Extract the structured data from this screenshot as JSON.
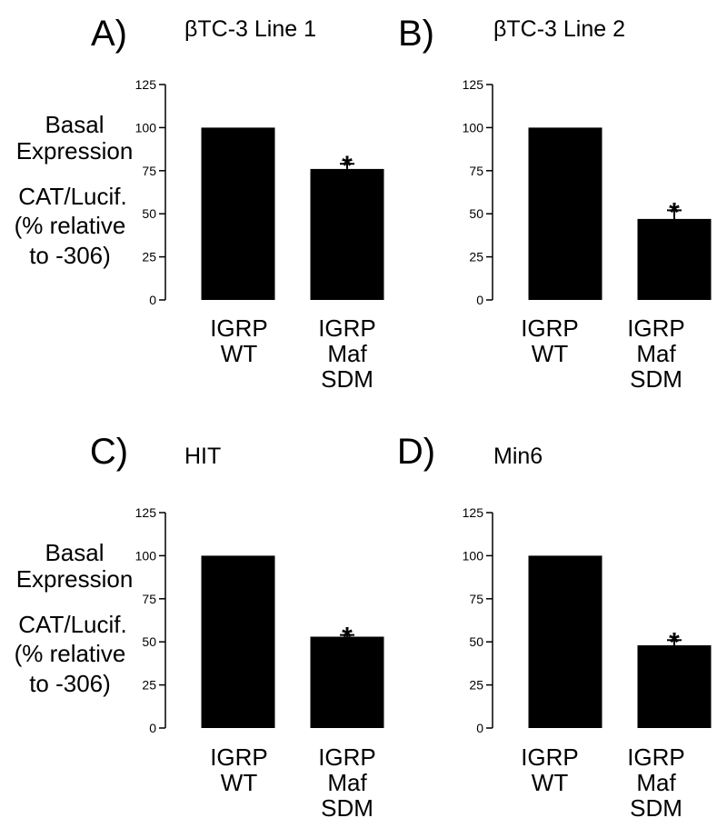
{
  "figure": {
    "ylabel_lines": [
      "Basal",
      "Expression",
      "CAT/Lucif.",
      "(% relative",
      "to -306)"
    ],
    "ytick_labels": [
      "0",
      "25",
      "50",
      "75",
      "100",
      "125"
    ]
  },
  "chart_data": [
    {
      "type": "bar",
      "panel": "A)",
      "title": "βTC-3 Line 1",
      "ylabel": "Basal Expression CAT/Lucif. (% relative to -306)",
      "ylim": [
        0,
        125
      ],
      "yticks": [
        0,
        25,
        50,
        75,
        100,
        125
      ],
      "categories": [
        [
          "IGRP",
          "WT"
        ],
        [
          "IGRP",
          "Maf",
          "SDM"
        ]
      ],
      "values": [
        100,
        76
      ],
      "errors": [
        0,
        3
      ],
      "significance": [
        "",
        "*"
      ]
    },
    {
      "type": "bar",
      "panel": "B)",
      "title": "βTC-3 Line 2",
      "ylabel": "",
      "ylim": [
        0,
        125
      ],
      "yticks": [
        0,
        25,
        50,
        75,
        100,
        125
      ],
      "categories": [
        [
          "IGRP",
          "WT"
        ],
        [
          "IGRP",
          "Maf",
          "SDM"
        ]
      ],
      "values": [
        100,
        47
      ],
      "errors": [
        0,
        5
      ],
      "significance": [
        "",
        "*"
      ]
    },
    {
      "type": "bar",
      "panel": "C)",
      "title": "HIT",
      "ylabel": "Basal Expression CAT/Lucif. (% relative to -306)",
      "ylim": [
        0,
        125
      ],
      "yticks": [
        0,
        25,
        50,
        75,
        100,
        125
      ],
      "categories": [
        [
          "IGRP",
          "WT"
        ],
        [
          "IGRP",
          "Maf",
          "SDM"
        ]
      ],
      "values": [
        100,
        53
      ],
      "errors": [
        0,
        1
      ],
      "significance": [
        "",
        "*"
      ]
    },
    {
      "type": "bar",
      "panel": "D)",
      "title": "Min6",
      "ylabel": "",
      "ylim": [
        0,
        125
      ],
      "yticks": [
        0,
        25,
        50,
        75,
        100,
        125
      ],
      "categories": [
        [
          "IGRP",
          "WT"
        ],
        [
          "IGRP",
          "Maf",
          "SDM"
        ]
      ],
      "values": [
        100,
        48
      ],
      "errors": [
        0,
        3
      ],
      "significance": [
        "",
        "*"
      ]
    }
  ]
}
